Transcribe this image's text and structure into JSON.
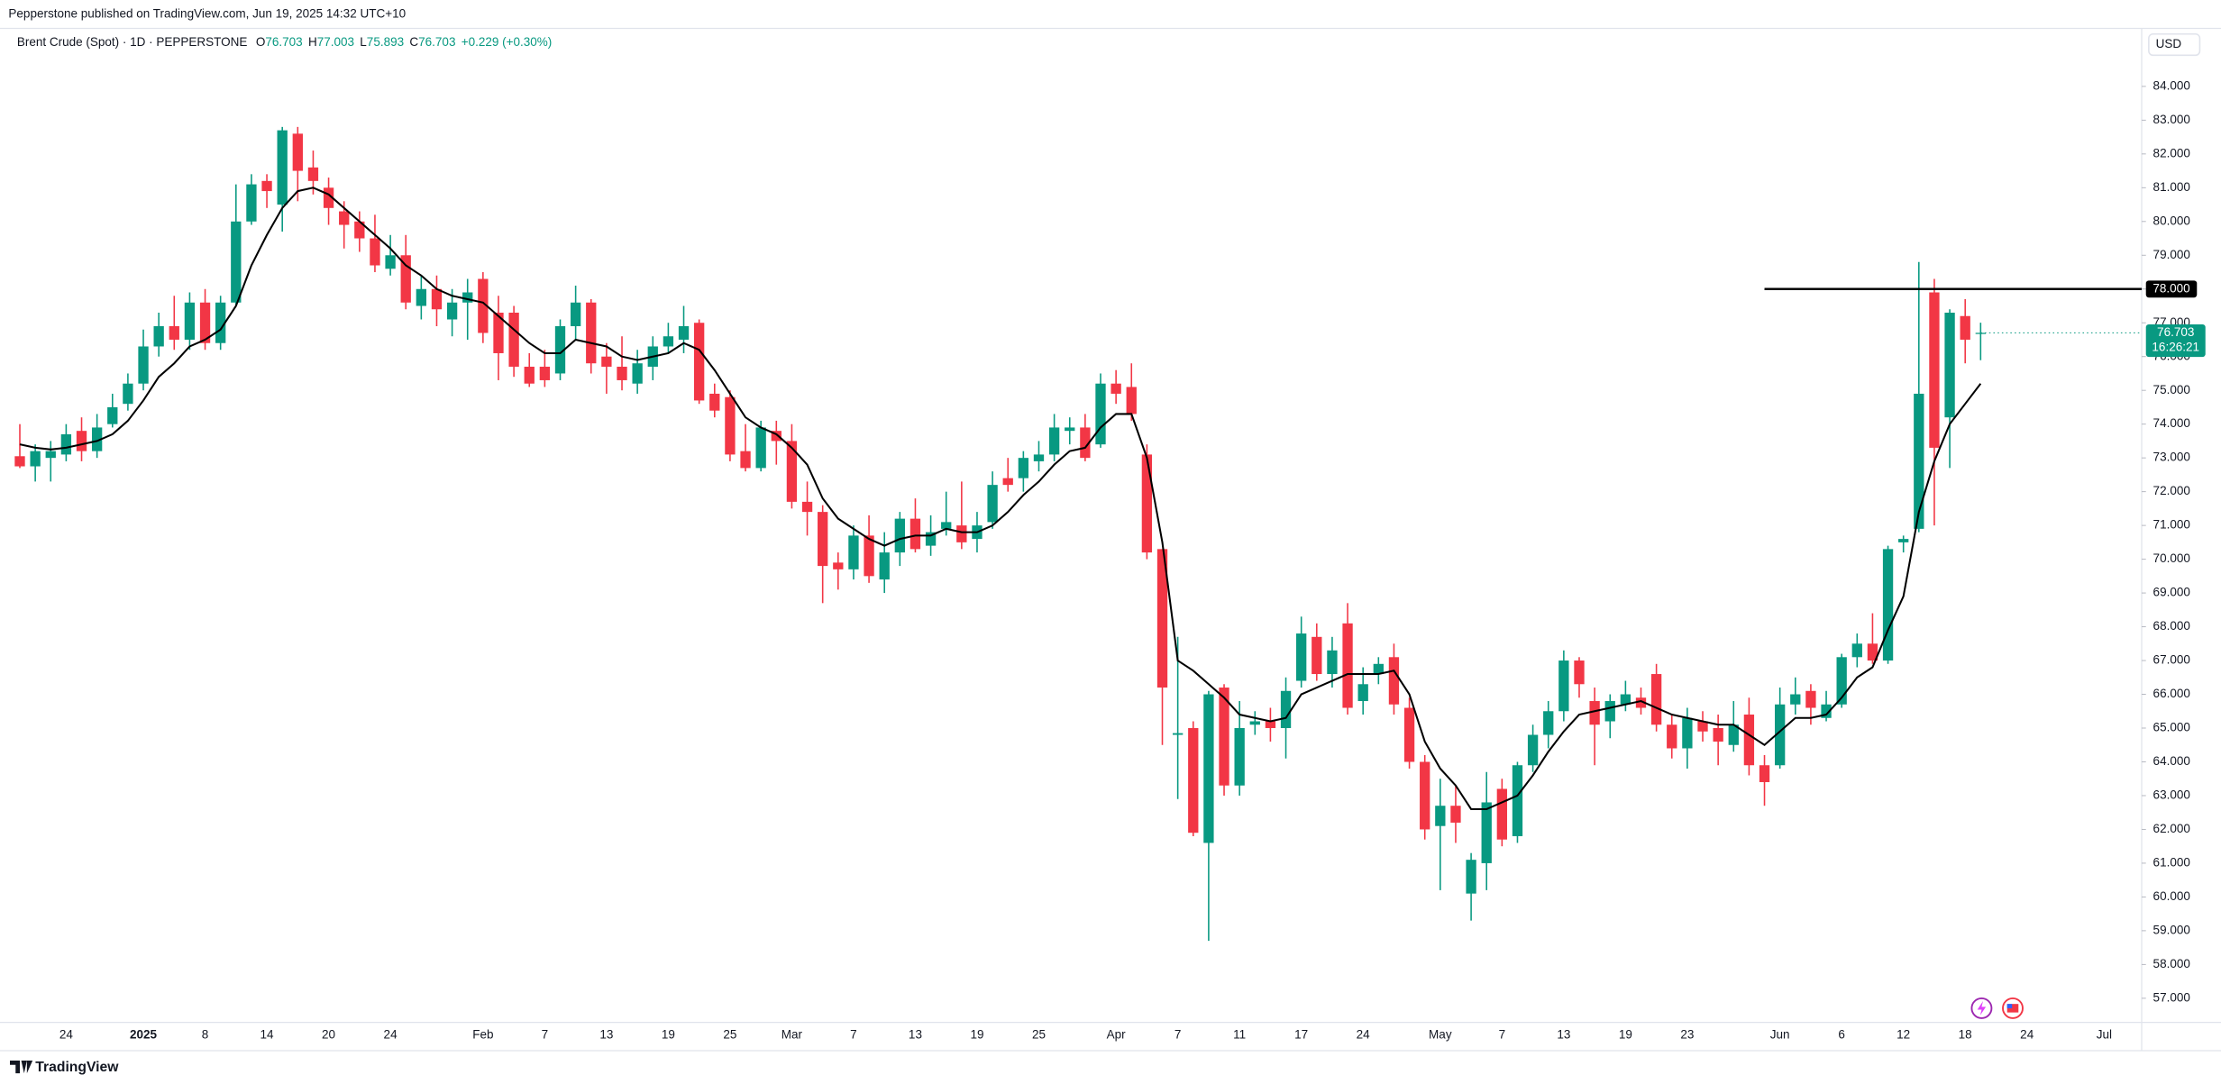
{
  "page": {
    "publisher": "Pepperstone published on TradingView.com, Jun 19, 2025 14:32 UTC+10",
    "symbol": "Brent Crude (Spot) · 1D · PEPPERSTONE",
    "ohlc": [
      {
        "key": "O",
        "value": "76.703"
      },
      {
        "key": "H",
        "value": "77.003"
      },
      {
        "key": "L",
        "value": "75.893"
      },
      {
        "key": "C",
        "value": "76.703"
      }
    ],
    "change": "+0.229 (+0.30%)",
    "currency": "USD",
    "brand": "TradingView"
  },
  "chart_data": {
    "type": "candlestick",
    "up_color": "#089981",
    "down_color": "#f23645",
    "categories": [
      null,
      null,
      null,
      "24",
      null,
      null,
      null,
      null,
      "2025",
      null,
      null,
      null,
      "8",
      null,
      null,
      null,
      "14",
      null,
      null,
      null,
      "20",
      null,
      null,
      null,
      "24",
      null,
      null,
      null,
      null,
      null,
      "Feb",
      null,
      null,
      null,
      "7",
      null,
      null,
      null,
      "13",
      null,
      null,
      null,
      "19",
      null,
      null,
      null,
      "25",
      null,
      null,
      null,
      "Mar",
      null,
      null,
      null,
      "7",
      null,
      null,
      null,
      "13",
      null,
      null,
      null,
      "19",
      null,
      null,
      null,
      "25",
      null,
      null,
      null,
      null,
      "Apr",
      null,
      null,
      null,
      "7",
      null,
      null,
      null,
      "11",
      null,
      null,
      null,
      "17",
      null,
      null,
      null,
      "24",
      null,
      null,
      null,
      null,
      "May",
      null,
      null,
      null,
      "7",
      null,
      null,
      null,
      "13",
      null,
      null,
      null,
      "19",
      null,
      null,
      null,
      "23",
      null,
      null,
      null,
      null,
      null,
      "Jun",
      null,
      null,
      null,
      "6",
      null,
      null,
      null,
      "12",
      null,
      null,
      null,
      "18",
      null,
      null,
      null,
      "24",
      null,
      null,
      null,
      null,
      "Jul"
    ],
    "open": [
      73.05,
      72.75,
      73.0,
      73.1,
      73.8,
      73.2,
      74.0,
      74.6,
      75.2,
      76.3,
      76.9,
      76.5,
      77.6,
      76.4,
      77.6,
      80.0,
      81.2,
      80.5,
      82.6,
      81.6,
      81.0,
      80.3,
      80.0,
      79.5,
      78.6,
      79.0,
      77.5,
      78.0,
      77.1,
      77.6,
      78.3,
      77.3,
      77.3,
      75.7,
      75.7,
      75.5,
      76.9,
      77.6,
      76.0,
      75.7,
      75.2,
      75.7,
      76.3,
      76.5,
      77.0,
      74.9,
      74.8,
      73.2,
      72.7,
      73.8,
      73.5,
      71.7,
      71.4,
      69.9,
      69.7,
      70.7,
      69.4,
      70.2,
      71.2,
      70.4,
      70.9,
      71.0,
      70.6,
      71.1,
      72.4,
      72.4,
      72.9,
      73.1,
      73.8,
      73.9,
      73.4,
      75.2,
      75.1,
      73.1,
      70.3,
      64.8,
      65.0,
      61.6,
      66.2,
      63.3,
      65.1,
      65.2,
      65.0,
      66.4,
      67.7,
      66.6,
      68.1,
      65.8,
      66.6,
      67.1,
      65.6,
      64.0,
      62.1,
      62.7,
      60.1,
      61.0,
      63.2,
      61.8,
      63.9,
      64.8,
      65.5,
      67.0,
      65.8,
      65.2,
      65.7,
      65.9,
      66.6,
      65.1,
      64.4,
      65.2,
      65.0,
      64.5,
      65.4,
      63.9,
      63.9,
      65.7,
      66.1,
      65.3,
      65.7,
      67.1,
      67.5,
      67.0,
      70.5,
      70.9,
      77.9,
      74.2,
      77.2,
      76.703,
      null,
      null,
      null,
      null,
      null,
      null,
      null,
      null
    ],
    "high": [
      74.0,
      73.4,
      73.5,
      74.0,
      74.2,
      74.3,
      74.9,
      75.5,
      76.8,
      77.3,
      77.8,
      77.9,
      78.0,
      77.8,
      81.1,
      81.4,
      81.4,
      82.8,
      82.8,
      82.1,
      81.3,
      80.6,
      80.3,
      80.2,
      79.6,
      79.6,
      78.4,
      78.4,
      78.0,
      78.3,
      78.5,
      77.8,
      77.5,
      76.1,
      76.2,
      77.1,
      78.1,
      77.7,
      76.4,
      76.6,
      76.2,
      76.6,
      77.0,
      77.5,
      77.1,
      75.2,
      75.0,
      74.0,
      74.1,
      74.1,
      74.0,
      72.3,
      71.6,
      70.2,
      71.0,
      71.3,
      70.8,
      71.4,
      71.8,
      71.3,
      72.0,
      72.3,
      71.4,
      72.6,
      73.0,
      73.2,
      73.5,
      74.3,
      74.2,
      74.3,
      75.5,
      75.6,
      75.8,
      73.4,
      70.3,
      67.7,
      65.2,
      66.1,
      66.3,
      65.8,
      65.5,
      65.6,
      66.5,
      68.3,
      68.1,
      67.7,
      68.7,
      66.8,
      67.1,
      67.5,
      65.9,
      64.2,
      63.5,
      63.3,
      61.3,
      63.7,
      63.5,
      64.0,
      65.1,
      65.8,
      67.3,
      67.1,
      66.2,
      66.0,
      66.4,
      66.2,
      66.9,
      65.4,
      65.6,
      65.5,
      65.4,
      65.8,
      65.9,
      64.2,
      66.2,
      66.5,
      66.3,
      66.1,
      67.2,
      67.8,
      68.4,
      70.4,
      70.7,
      78.8,
      78.3,
      77.4,
      77.7,
      77.003,
      null,
      null,
      null,
      null,
      null,
      null,
      null,
      null
    ],
    "low": [
      72.7,
      72.3,
      72.3,
      72.9,
      72.9,
      73.0,
      73.9,
      74.4,
      75.0,
      76.0,
      76.2,
      76.2,
      76.2,
      76.2,
      77.5,
      79.9,
      80.4,
      79.7,
      80.6,
      80.8,
      79.9,
      79.2,
      79.1,
      78.5,
      78.4,
      77.4,
      77.1,
      76.9,
      76.6,
      76.5,
      76.4,
      75.3,
      75.4,
      75.1,
      75.1,
      75.3,
      76.5,
      75.5,
      74.9,
      75.0,
      74.9,
      75.3,
      76.1,
      76.1,
      74.6,
      74.2,
      72.9,
      72.6,
      72.6,
      72.8,
      71.5,
      70.7,
      68.7,
      69.1,
      69.4,
      69.3,
      69.0,
      69.8,
      70.2,
      70.1,
      70.7,
      70.3,
      70.2,
      70.9,
      72.0,
      72.0,
      72.6,
      72.9,
      73.4,
      72.9,
      73.3,
      74.6,
      74.1,
      70.0,
      64.5,
      62.9,
      61.8,
      58.7,
      63.0,
      63.0,
      64.8,
      64.6,
      64.1,
      66.2,
      66.4,
      66.2,
      65.4,
      65.4,
      66.3,
      65.4,
      63.8,
      61.7,
      60.2,
      61.6,
      59.3,
      60.2,
      61.5,
      61.6,
      63.7,
      64.4,
      65.2,
      65.9,
      63.9,
      64.7,
      65.5,
      65.4,
      64.9,
      64.1,
      63.8,
      64.6,
      63.9,
      64.3,
      63.6,
      62.7,
      63.8,
      65.4,
      65.1,
      65.2,
      65.6,
      66.8,
      66.9,
      66.9,
      70.2,
      70.8,
      71.0,
      72.7,
      75.8,
      75.893,
      null,
      null,
      null,
      null,
      null,
      null,
      null,
      null
    ],
    "close": [
      72.75,
      73.2,
      73.2,
      73.7,
      73.2,
      73.9,
      74.5,
      75.2,
      76.3,
      76.9,
      76.5,
      77.6,
      76.4,
      77.6,
      80.0,
      81.1,
      80.9,
      82.7,
      81.5,
      81.2,
      80.4,
      79.9,
      79.5,
      78.7,
      79.0,
      77.6,
      78.0,
      77.4,
      77.6,
      77.9,
      76.7,
      76.1,
      75.7,
      75.2,
      75.3,
      76.9,
      77.6,
      75.8,
      75.7,
      75.3,
      75.8,
      76.3,
      76.6,
      76.9,
      74.7,
      74.4,
      73.1,
      72.7,
      73.9,
      73.5,
      71.7,
      71.4,
      69.8,
      69.7,
      70.7,
      69.5,
      70.2,
      71.2,
      70.3,
      70.8,
      71.1,
      70.5,
      71.0,
      72.2,
      72.2,
      73.0,
      73.1,
      73.9,
      73.9,
      73.0,
      75.2,
      74.9,
      74.3,
      70.2,
      66.2,
      64.85,
      61.9,
      66.0,
      63.3,
      65.0,
      65.2,
      65.0,
      66.1,
      67.8,
      66.6,
      67.3,
      65.6,
      66.3,
      66.9,
      65.7,
      64.0,
      62.0,
      62.7,
      62.2,
      61.1,
      62.8,
      61.7,
      63.9,
      64.8,
      65.5,
      67.0,
      66.3,
      65.1,
      65.8,
      66.0,
      65.6,
      65.1,
      64.4,
      65.3,
      64.9,
      64.6,
      65.1,
      63.9,
      63.4,
      65.7,
      66.0,
      65.6,
      65.7,
      67.1,
      67.5,
      67.0,
      70.3,
      70.6,
      74.9,
      73.3,
      77.3,
      76.5,
      76.703,
      null,
      null,
      null,
      null,
      null,
      null,
      null,
      null
    ],
    "ma": {
      "color": "#000000",
      "values": [
        73.4,
        73.3,
        73.25,
        73.3,
        73.4,
        73.5,
        73.7,
        74.1,
        74.7,
        75.4,
        75.8,
        76.3,
        76.5,
        76.8,
        77.5,
        78.7,
        79.6,
        80.4,
        80.9,
        81.0,
        80.8,
        80.4,
        80.0,
        79.6,
        79.2,
        78.7,
        78.4,
        78.0,
        77.8,
        77.7,
        77.6,
        77.2,
        76.8,
        76.4,
        76.1,
        76.1,
        76.5,
        76.4,
        76.3,
        76.0,
        75.9,
        76.0,
        76.1,
        76.4,
        76.2,
        75.6,
        74.9,
        74.2,
        73.9,
        73.7,
        73.3,
        72.8,
        71.8,
        71.2,
        70.9,
        70.6,
        70.4,
        70.6,
        70.7,
        70.7,
        70.9,
        70.8,
        70.8,
        71.0,
        71.4,
        71.9,
        72.3,
        72.8,
        73.2,
        73.3,
        73.9,
        74.3,
        74.3,
        73.0,
        70.5,
        67.0,
        66.7,
        66.3,
        65.9,
        65.4,
        65.3,
        65.2,
        65.3,
        66.0,
        66.2,
        66.4,
        66.6,
        66.6,
        66.6,
        66.7,
        66.0,
        64.6,
        63.8,
        63.3,
        62.6,
        62.6,
        62.8,
        63.0,
        63.6,
        64.3,
        64.9,
        65.4,
        65.5,
        65.6,
        65.7,
        65.8,
        65.6,
        65.4,
        65.3,
        65.2,
        65.1,
        65.1,
        64.8,
        64.5,
        64.9,
        65.3,
        65.3,
        65.4,
        65.9,
        66.5,
        66.8,
        67.9,
        68.9,
        71.4,
        72.9,
        74.0,
        74.6,
        75.2,
        null,
        null,
        null,
        null,
        null,
        null,
        null,
        null
      ]
    },
    "hline": {
      "value": 78,
      "label": "78.000",
      "color": "#000000"
    },
    "price_tag": {
      "label": "76.703",
      "countdown": "16:26:21"
    },
    "ylim": [
      56.37,
      84.88
    ],
    "yticks": [
      {
        "value": 57,
        "label": "57.000"
      },
      {
        "value": 58,
        "label": "58.000"
      },
      {
        "value": 59,
        "label": "59.000"
      },
      {
        "value": 60,
        "label": "60.000"
      },
      {
        "value": 61,
        "label": "61.000"
      },
      {
        "value": 62,
        "label": "62.000"
      },
      {
        "value": 63,
        "label": "63.000"
      },
      {
        "value": 64,
        "label": "64.000"
      },
      {
        "value": 65,
        "label": "65.000"
      },
      {
        "value": 66,
        "label": "66.000"
      },
      {
        "value": 67,
        "label": "67.000"
      },
      {
        "value": 68,
        "label": "68.000"
      },
      {
        "value": 69,
        "label": "69.000"
      },
      {
        "value": 70,
        "label": "70.000"
      },
      {
        "value": 71,
        "label": "71.000"
      },
      {
        "value": 72,
        "label": "72.000"
      },
      {
        "value": 73,
        "label": "73.000"
      },
      {
        "value": 74,
        "label": "74.000"
      },
      {
        "value": 75,
        "label": "75.000"
      },
      {
        "value": 76,
        "label": "76.000"
      },
      {
        "value": 77,
        "label": "77.000"
      },
      {
        "value": 78,
        "label": "78.000"
      },
      {
        "value": 79,
        "label": "79.000"
      },
      {
        "value": 80,
        "label": "80.000"
      },
      {
        "value": 81,
        "label": "81.000"
      },
      {
        "value": 82,
        "label": "82.000"
      },
      {
        "value": 83,
        "label": "83.000"
      },
      {
        "value": 84,
        "label": "84.000"
      }
    ],
    "grid": false
  }
}
